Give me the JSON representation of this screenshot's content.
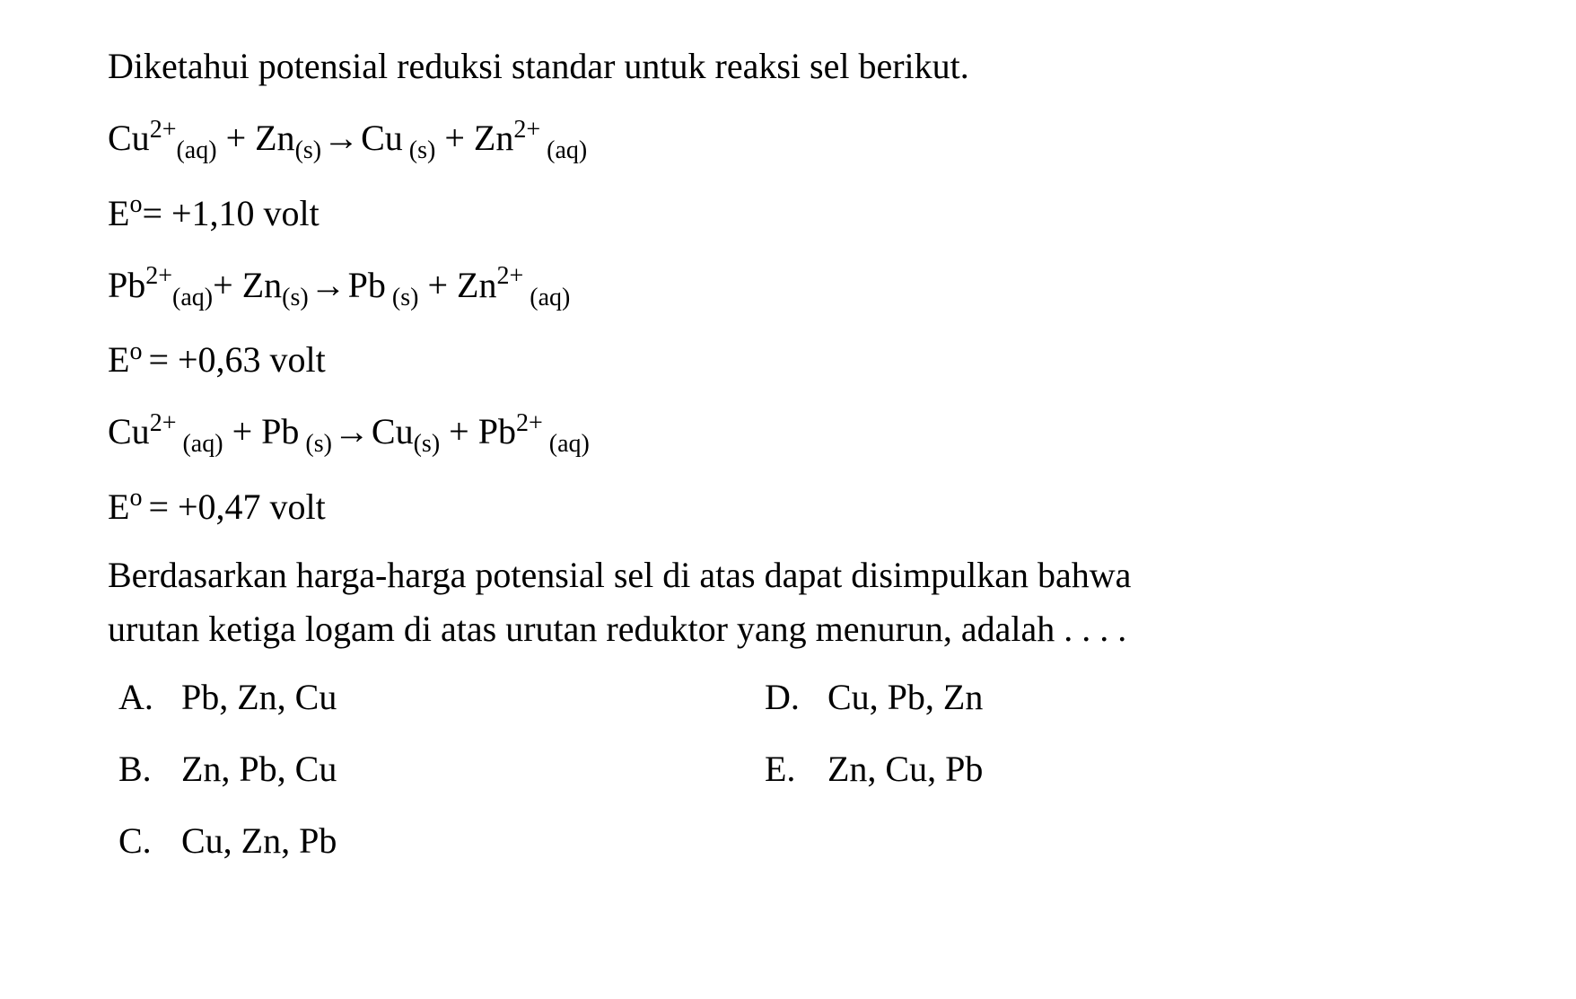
{
  "intro": "Diketahui potensial reduksi standar untuk reaksi sel berikut.",
  "eq1": {
    "cu": "Cu",
    "cu_sup": "2+",
    "cu_sub": "(aq)",
    "plus1": " + ",
    "zn": "Zn",
    "zn_sub": "(s)",
    "arrow": " → ",
    "cu2": "Cu",
    "cu2_sub": " (s)",
    "plus2": " + ",
    "zn2": "Zn",
    "zn2_sup": "2+",
    "zn2_sub": " (aq)"
  },
  "e1": {
    "label": "E",
    "sup": "o",
    "eq": "= +1,10 volt"
  },
  "eq2": {
    "pb": "Pb",
    "pb_sup": "2+",
    "pb_sub": "(aq)",
    "plus1": "+ ",
    "zn": "Zn",
    "zn_sub": "(s)",
    "arrow": " → ",
    "pb2": "Pb",
    "pb2_sub": " (s)",
    "plus2": " + ",
    "zn2": "Zn",
    "zn2_sup": "2+",
    "zn2_sub": " (aq)"
  },
  "e2": {
    "label": "E",
    "sup": "o ",
    "eq": "= +0,63 volt"
  },
  "eq3": {
    "cu": "Cu",
    "cu_sup": "2+",
    "cu_sub": " (aq)",
    "plus1": " + ",
    "pb": "Pb",
    "pb_sub": " (s)",
    "arrow": " → ",
    "cu2": "Cu",
    "cu2_sub": "(s)",
    "plus2": " + ",
    "pb2": "Pb",
    "pb2_sup": "2+",
    "pb2_sub": " (aq)"
  },
  "e3": {
    "label": "E",
    "sup": "o ",
    "eq": "= +0,47 volt"
  },
  "conclusion1": "Berdasarkan harga-harga potensial sel di atas dapat disimpulkan bahwa",
  "conclusion2": " urutan ketiga logam di atas urutan reduktor yang menurun, adalah . . . .",
  "options": {
    "a_letter": "A.",
    "a_text": "Pb, Zn, Cu",
    "b_letter": "B.",
    "b_text": "Zn, Pb, Cu",
    "c_letter": "C.",
    "c_text": "Cu, Zn, Pb",
    "d_letter": "D.",
    "d_text": "Cu, Pb, Zn",
    "e_letter": "E.",
    "e_text": "Zn, Cu, Pb"
  }
}
